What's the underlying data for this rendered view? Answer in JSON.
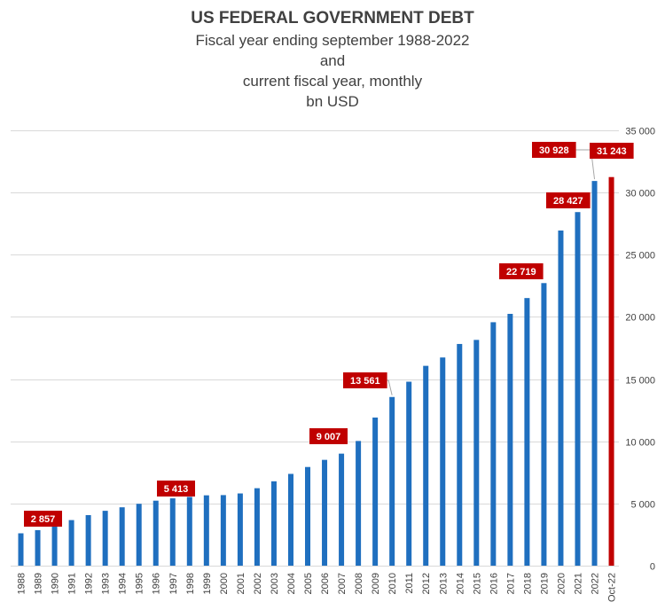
{
  "chart_data": {
    "type": "bar",
    "title": "US FEDERAL GOVERNMENT DEBT",
    "subtitle_lines": [
      "Fiscal year ending september 1988-2022",
      "and",
      "current fiscal year, monthly",
      "bn USD"
    ],
    "xlabel": "",
    "ylabel": "",
    "ylim": [
      0,
      35000
    ],
    "y_ticks": [
      0,
      5000,
      10000,
      15000,
      20000,
      25000,
      30000,
      35000
    ],
    "y_tick_labels": [
      "0",
      "5 000",
      "10 000",
      "15 000",
      "20 000",
      "25 000",
      "30 000",
      "35 000"
    ],
    "y_axis_side": "right",
    "grid": true,
    "categories": [
      "1988",
      "1989",
      "1990",
      "1991",
      "1992",
      "1993",
      "1994",
      "1995",
      "1996",
      "1997",
      "1998",
      "1999",
      "2000",
      "2001",
      "2002",
      "2003",
      "2004",
      "2005",
      "2006",
      "2007",
      "2008",
      "2009",
      "2010",
      "2011",
      "2012",
      "2013",
      "2014",
      "2015",
      "2016",
      "2017",
      "2018",
      "2019",
      "2020",
      "2021",
      "2022",
      "Oct-22"
    ],
    "values": [
      2602,
      2857,
      3233,
      3665,
      4065,
      4411,
      4693,
      4974,
      5225,
      5413,
      5526,
      5656,
      5674,
      5807,
      6228,
      6783,
      7379,
      7933,
      8507,
      9007,
      10025,
      11910,
      13561,
      14790,
      16066,
      16738,
      17824,
      18151,
      19573,
      20245,
      21516,
      22719,
      26945,
      28427,
      30928,
      31243
    ],
    "data_labels": [
      {
        "category": "1989",
        "text": "2 857"
      },
      {
        "category": "1997",
        "text": "5 413"
      },
      {
        "category": "2007",
        "text": "9 007"
      },
      {
        "category": "2010",
        "text": "13 561"
      },
      {
        "category": "2019",
        "text": "22 719"
      },
      {
        "category": "2021",
        "text": "28 427"
      },
      {
        "category": "2022",
        "text": "30 928"
      },
      {
        "category": "Oct-22",
        "text": "31 243"
      }
    ],
    "colors": {
      "bar": "#1f6fbf",
      "highlight_bar": "#c00000",
      "label_bg": "#c00000",
      "label_text": "#ffffff",
      "grid": "#d9d9d9"
    },
    "highlight_category": "Oct-22"
  }
}
